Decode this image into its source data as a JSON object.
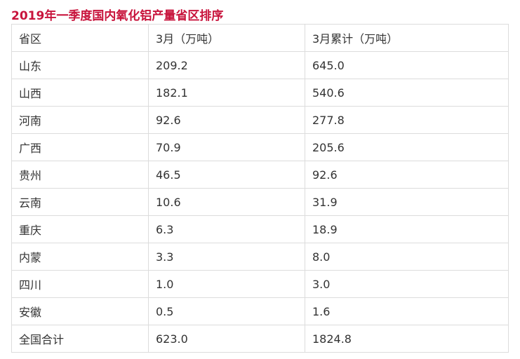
{
  "title": "2019年一季度国内氧化铝产量省区排序",
  "table": {
    "headers": [
      "省区",
      "3月（万吨）",
      "3月累计（万吨）"
    ],
    "rows": [
      [
        "山东",
        "209.2",
        "645.0"
      ],
      [
        "山西",
        "182.1",
        "540.6"
      ],
      [
        "河南",
        "92.6",
        "277.8"
      ],
      [
        "广西",
        "70.9",
        "205.6"
      ],
      [
        "贵州",
        "46.5",
        "92.6"
      ],
      [
        "云南",
        "10.6",
        "31.9"
      ],
      [
        "重庆",
        "6.3",
        "18.9"
      ],
      [
        "内蒙",
        "3.3",
        "8.0"
      ],
      [
        "四川",
        "1.0",
        "3.0"
      ],
      [
        "安徽",
        "0.5",
        "1.6"
      ],
      [
        "全国合计",
        "623.0",
        "1824.8"
      ]
    ]
  },
  "colors": {
    "title": "#c8143c",
    "border": "#dcdcdc"
  }
}
